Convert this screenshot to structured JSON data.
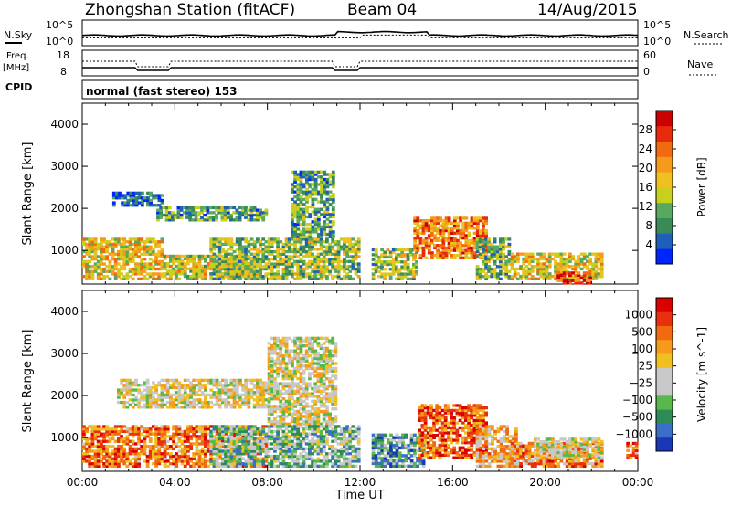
{
  "header": {
    "station": "Zhongshan Station (fitACF)",
    "beam": "Beam 04",
    "date": "14/Aug/2015"
  },
  "strips": {
    "nsky_label": "N.Sky",
    "nsky_tick_top": "10^5",
    "nsky_tick_bot": "10^0",
    "nsearch_label": "N.Search",
    "freq_label": "Freq.",
    "freq_unit": "[MHz]",
    "freq_tick_top": "18",
    "freq_tick_bot": "8",
    "nave_label": "Nave",
    "nave_tick_top": "60",
    "nave_tick_bot": "0",
    "cpid_label": "CPID",
    "cpid_text": "normal (fast stereo) 153"
  },
  "chart_data": [
    {
      "type": "heatmap",
      "name": "power",
      "ylabel": "Slant Range [km]",
      "ylim": [
        200,
        4500
      ],
      "yticks": [
        "1000",
        "2000",
        "3000",
        "4000"
      ],
      "colorbar_label": "Power [dB]",
      "colorbar_ticks": [
        "4",
        "8",
        "12",
        "16",
        "20",
        "24",
        "28"
      ],
      "colorbar_colors": [
        "#0026ff",
        "#1f5fb8",
        "#3a8a58",
        "#58a860",
        "#c7d01c",
        "#f0c020",
        "#f59a1a",
        "#f06a10",
        "#e82a0c",
        "#cc0000"
      ],
      "regions": [
        {
          "t0": 0.0,
          "t1": 3.5,
          "r0": 300,
          "r1": 1300,
          "level": 0.55
        },
        {
          "t0": 3.5,
          "t1": 7.5,
          "r0": 300,
          "r1": 900,
          "level": 0.5
        },
        {
          "t0": 1.3,
          "t1": 3.5,
          "r0": 2050,
          "r1": 2400,
          "level": 0.15
        },
        {
          "t0": 3.2,
          "t1": 8.0,
          "r0": 1700,
          "r1": 2050,
          "level": 0.3
        },
        {
          "t0": 5.5,
          "t1": 12.0,
          "r0": 300,
          "r1": 1300,
          "level": 0.4
        },
        {
          "t0": 9.0,
          "t1": 10.9,
          "r0": 1300,
          "r1": 2900,
          "level": 0.3
        },
        {
          "t0": 12.5,
          "t1": 14.5,
          "r0": 300,
          "r1": 1050,
          "level": 0.4
        },
        {
          "t0": 14.3,
          "t1": 17.5,
          "r0": 800,
          "r1": 1800,
          "level": 0.7
        },
        {
          "t0": 17.0,
          "t1": 18.5,
          "r0": 300,
          "r1": 1300,
          "level": 0.35
        },
        {
          "t0": 18.5,
          "t1": 22.5,
          "r0": 300,
          "r1": 950,
          "level": 0.55
        },
        {
          "t0": 20.5,
          "t1": 22.0,
          "r0": 200,
          "r1": 500,
          "level": 0.85
        }
      ]
    },
    {
      "type": "heatmap",
      "name": "velocity",
      "ylabel": "Slant Range [km]",
      "ylim": [
        200,
        4500
      ],
      "yticks": [
        "1000",
        "2000",
        "3000",
        "4000"
      ],
      "xlabel": "Time UT",
      "xticks": [
        "00:00",
        "04:00",
        "08:00",
        "12:00",
        "16:00",
        "20:00",
        "00:00"
      ],
      "colorbar_label": "Velocity [m s^-1]",
      "colorbar_ticks": [
        "1000",
        "500",
        "100",
        "25",
        "−25",
        "−100",
        "−500",
        "−1000"
      ],
      "colorbar_colors": [
        "#1c36b8",
        "#3a6ec8",
        "#2e8b57",
        "#58b84c",
        "#c8c8c8",
        "#c8c8c8",
        "#f0c020",
        "#f59a1a",
        "#f06a10",
        "#e8300c",
        "#dd0000"
      ],
      "regions": [
        {
          "t0": 0.0,
          "t1": 8.0,
          "r0": 300,
          "r1": 1300,
          "level": 0.75
        },
        {
          "t0": 1.5,
          "t1": 8.0,
          "r0": 1700,
          "r1": 2400,
          "level": 0.5
        },
        {
          "t0": 8.0,
          "t1": 11.0,
          "r0": 1300,
          "r1": 3400,
          "level": 0.5
        },
        {
          "t0": 5.5,
          "t1": 12.0,
          "r0": 300,
          "r1": 1300,
          "level": 0.35
        },
        {
          "t0": 12.5,
          "t1": 14.8,
          "r0": 300,
          "r1": 1100,
          "level": 0.25
        },
        {
          "t0": 14.5,
          "t1": 17.5,
          "r0": 500,
          "r1": 1800,
          "level": 0.8
        },
        {
          "t0": 17.0,
          "t1": 18.8,
          "r0": 300,
          "r1": 1300,
          "level": 0.6
        },
        {
          "t0": 18.5,
          "t1": 22.5,
          "r0": 300,
          "r1": 900,
          "level": 0.7
        },
        {
          "t0": 19.5,
          "t1": 22.5,
          "r0": 500,
          "r1": 1000,
          "level": 0.5
        },
        {
          "t0": 23.5,
          "t1": 24.0,
          "r0": 500,
          "r1": 900,
          "level": 0.75
        }
      ]
    }
  ]
}
